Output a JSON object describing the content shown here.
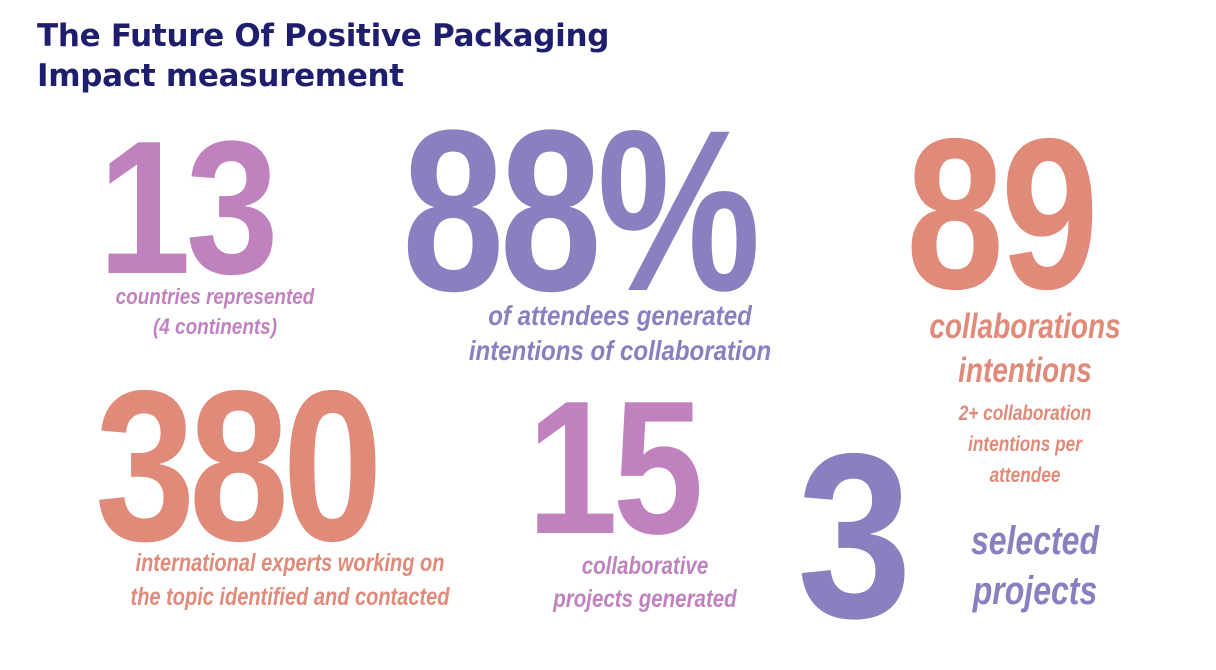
{
  "title": {
    "line1": "The Future Of Positive Packaging",
    "line2": "Impact measurement"
  },
  "colors": {
    "title": "#1f1e6e",
    "purple": "#8b7fc0",
    "violet": "#bf82bf",
    "salmon": "#e08a7a"
  },
  "stats": {
    "countries": {
      "value": "13",
      "caption_line1": "countries represented",
      "caption_line2": "(4 continents)"
    },
    "attendees": {
      "value": "88%",
      "caption_line1": "of attendees generated",
      "caption_line2": "intentions of collaboration"
    },
    "collaborations": {
      "value": "89",
      "caption_line1": "collaborations",
      "caption_line2": "intentions",
      "sub_line1": "2+ collaboration",
      "sub_line2": "intentions per",
      "sub_line3": "attendee"
    },
    "experts": {
      "value": "380",
      "caption_line1": "international experts working on",
      "caption_line2": "the topic identified and contacted"
    },
    "projects": {
      "value": "15",
      "caption_line1": "collaborative",
      "caption_line2": "projects generated"
    },
    "selected": {
      "value": "3",
      "caption_line1": "selected",
      "caption_line2": "projects"
    }
  }
}
